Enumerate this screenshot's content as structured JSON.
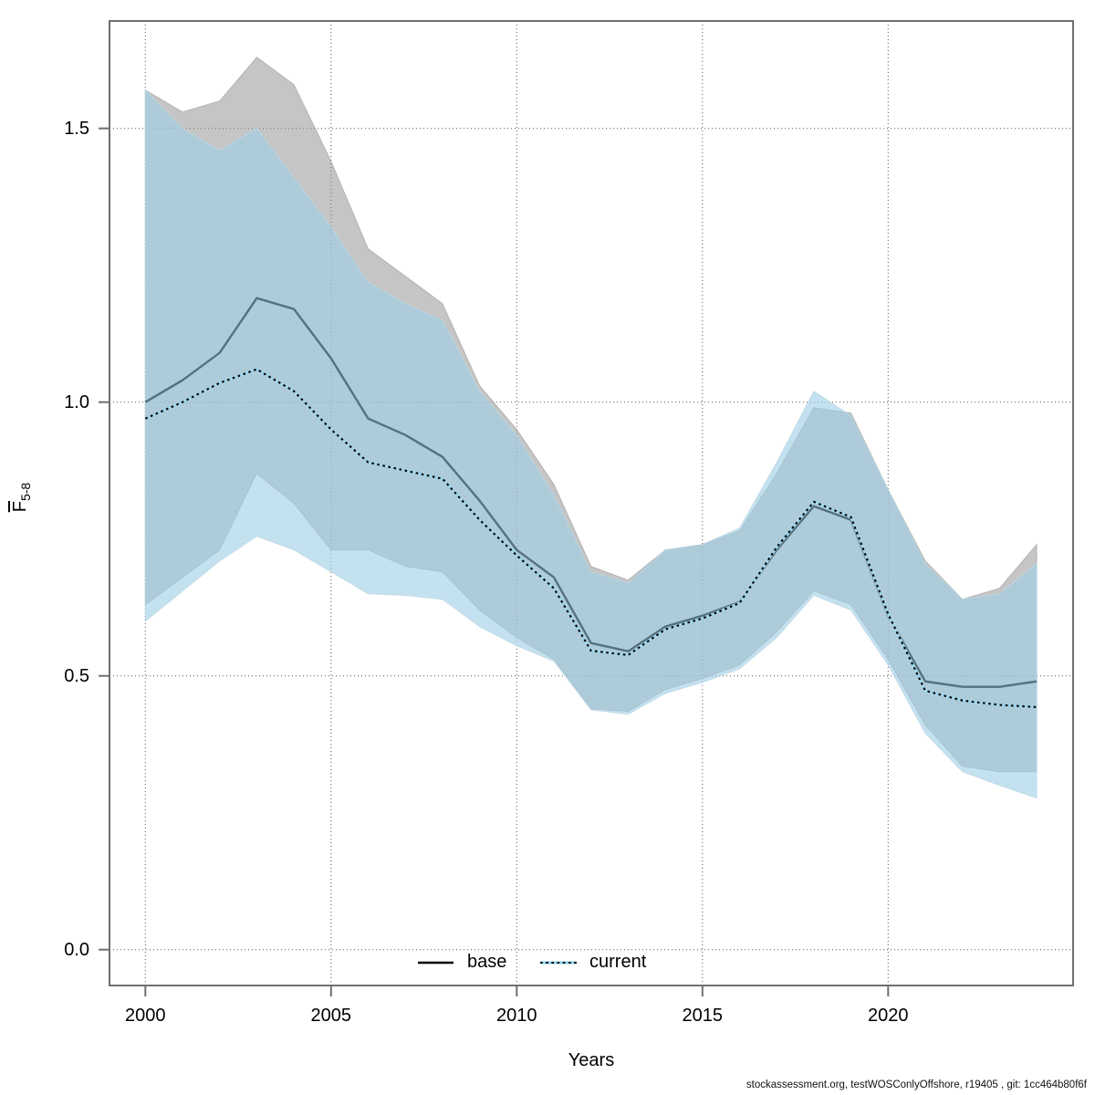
{
  "figure": {
    "xlabel": "Years",
    "ylabel_main": "F",
    "ylabel_sub": "5-8",
    "footer": "stockassessment.org, testWOSConlyOffshore, r19405 , git: 1cc464b80f6f",
    "legend": {
      "base_label": "base",
      "current_label": "current"
    }
  },
  "chart_data": {
    "type": "line",
    "title": "",
    "xlabel": "Years",
    "ylabel": "Fbar 5-8",
    "grid": "dotted",
    "legend_position": "bottom-center-inside",
    "xlim": [
      1999,
      2025.9
    ],
    "ylim": [
      -0.066,
      1.696
    ],
    "xticks": [
      {
        "v": 2000,
        "label": "2000"
      },
      {
        "v": 2005,
        "label": "2005"
      },
      {
        "v": 2010,
        "label": "2010"
      },
      {
        "v": 2015,
        "label": "2015"
      },
      {
        "v": 2020,
        "label": "2020"
      }
    ],
    "yticks": [
      {
        "v": 0.0,
        "label": "0.0"
      },
      {
        "v": 0.5,
        "label": "0.5"
      },
      {
        "v": 1.0,
        "label": "1.0"
      },
      {
        "v": 1.5,
        "label": "1.5"
      }
    ],
    "x": [
      2000,
      2001,
      2002,
      2003,
      2004,
      2005,
      2006,
      2007,
      2008,
      2009,
      2010,
      2011,
      2012,
      2013,
      2014,
      2015,
      2016,
      2017,
      2018,
      2019,
      2020,
      2021,
      2022,
      2023,
      2024
    ],
    "series": [
      {
        "name": "base",
        "style": "solid",
        "values": [
          1.0,
          1.04,
          1.09,
          1.19,
          1.17,
          1.08,
          0.97,
          0.94,
          0.9,
          0.82,
          0.73,
          0.68,
          0.56,
          0.545,
          0.59,
          0.61,
          0.635,
          0.73,
          0.81,
          0.785,
          0.61,
          0.49,
          0.48,
          0.48,
          0.49
        ],
        "ci_upper": [
          1.57,
          1.53,
          1.55,
          1.63,
          1.58,
          1.44,
          1.28,
          1.23,
          1.18,
          1.03,
          0.95,
          0.85,
          0.7,
          0.675,
          0.73,
          0.74,
          0.765,
          0.87,
          0.99,
          0.98,
          0.84,
          0.71,
          0.64,
          0.66,
          0.74
        ],
        "ci_lower": [
          0.63,
          0.68,
          0.73,
          0.87,
          0.815,
          0.73,
          0.73,
          0.7,
          0.69,
          0.62,
          0.57,
          0.53,
          0.44,
          0.435,
          0.475,
          0.495,
          0.52,
          0.58,
          0.655,
          0.63,
          0.53,
          0.41,
          0.335,
          0.325,
          0.325
        ]
      },
      {
        "name": "current",
        "style": "dotted",
        "values": [
          0.97,
          1.0,
          1.035,
          1.06,
          1.02,
          0.95,
          0.89,
          0.875,
          0.86,
          0.785,
          0.72,
          0.66,
          0.546,
          0.538,
          0.585,
          0.605,
          0.633,
          0.735,
          0.818,
          0.79,
          0.613,
          0.473,
          0.455,
          0.447,
          0.443
        ],
        "ci_upper": [
          1.57,
          1.5,
          1.46,
          1.5,
          1.41,
          1.32,
          1.22,
          1.18,
          1.15,
          1.02,
          0.94,
          0.83,
          0.69,
          0.67,
          0.73,
          0.74,
          0.77,
          0.89,
          1.02,
          0.975,
          0.84,
          0.705,
          0.64,
          0.65,
          0.705
        ],
        "ci_lower": [
          0.6,
          0.655,
          0.71,
          0.755,
          0.73,
          0.69,
          0.65,
          0.647,
          0.64,
          0.59,
          0.555,
          0.527,
          0.438,
          0.43,
          0.468,
          0.488,
          0.513,
          0.57,
          0.647,
          0.62,
          0.52,
          0.395,
          0.325,
          0.3,
          0.277
        ]
      }
    ]
  },
  "colors": {
    "base_line": "#53717e",
    "base_band": "#8c8c8c",
    "base_band_opacity": 0.5,
    "current_band": "#9fcfe6",
    "current_band_opacity": 0.62,
    "current_line_under": "#9fd4ec",
    "current_line_dots": "#000000",
    "legend_base_line": "#000000",
    "legend_current_under": "#8fd0ea",
    "frame": "#6f6f6f",
    "grid": "#555555"
  }
}
